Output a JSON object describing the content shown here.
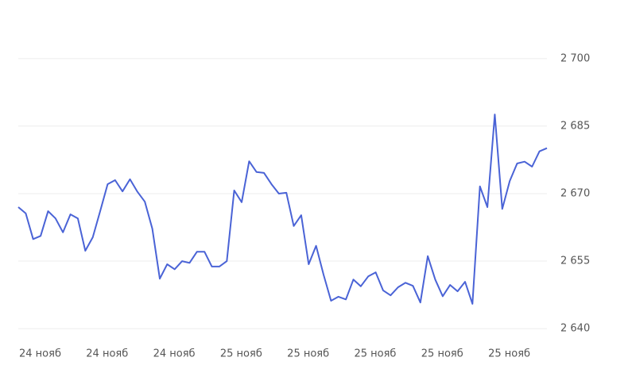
{
  "chart_data": {
    "type": "line",
    "x_labels": [
      "24 нояб",
      "24 нояб",
      "24 нояб",
      "25 нояб",
      "25 нояб",
      "25 нояб",
      "25 нояб",
      "25 нояб"
    ],
    "series": [
      {
        "color": "#4a63d6",
        "values": [
          2667.0,
          2665.6,
          2659.9,
          2660.6,
          2666.1,
          2664.5,
          2661.4,
          2665.4,
          2664.5,
          2657.3,
          2660.3,
          2666.1,
          2672.1,
          2673.0,
          2670.5,
          2673.2,
          2670.4,
          2668.2,
          2662.2,
          2651.1,
          2654.3,
          2653.2,
          2655.0,
          2654.6,
          2657.1,
          2657.1,
          2653.8,
          2653.8,
          2655.0,
          2670.7,
          2668.1,
          2677.2,
          2674.8,
          2674.6,
          2672.1,
          2670.0,
          2670.2,
          2662.8,
          2665.2,
          2654.3,
          2658.4,
          2652.0,
          2646.2,
          2647.1,
          2646.5,
          2650.9,
          2649.4,
          2651.6,
          2652.5,
          2648.5,
          2647.4,
          2649.2,
          2650.2,
          2649.5,
          2645.8,
          2656.1,
          2650.9,
          2647.2,
          2649.7,
          2648.3,
          2650.4,
          2645.5,
          2671.6,
          2667.0,
          2687.6,
          2666.6,
          2672.8,
          2676.7,
          2677.1,
          2676.0,
          2679.4,
          2680.1
        ]
      }
    ],
    "ylim": [
      2637.2,
      2709.5
    ],
    "yticks": [
      {
        "value": 2640,
        "label": "2 640"
      },
      {
        "value": 2655,
        "label": "2 655"
      },
      {
        "value": 2670,
        "label": "2 670"
      },
      {
        "value": 2685,
        "label": "2 685"
      },
      {
        "value": 2700,
        "label": "2 700"
      }
    ],
    "grid": true
  }
}
